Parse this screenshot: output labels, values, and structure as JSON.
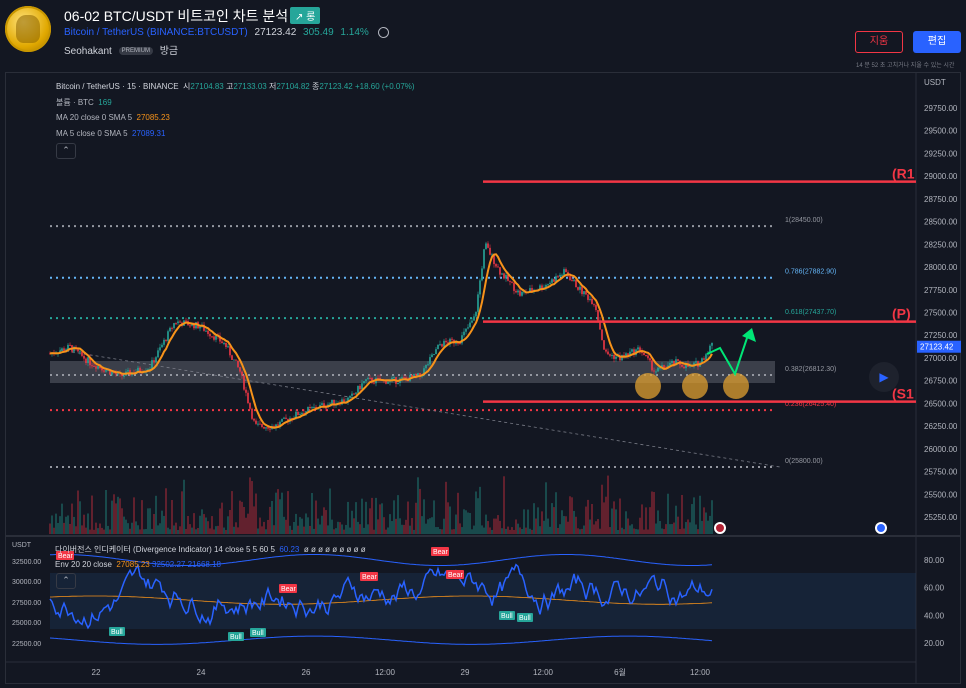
{
  "header": {
    "title": "06-02 BTC/USDT 비트코인 차트 분석",
    "badge": "↗ 롱",
    "symbol": "Bitcoin / TetherUS",
    "exchange": "(BINANCE:BTCUSDT)",
    "price": "27123.42",
    "change": "305.49",
    "change_pct": "1.14%",
    "author": "Seohakant",
    "premium": "PREMIUM",
    "time_ago": "방금",
    "unfollow_label": "지움",
    "edit_label": "편집",
    "edit_note": "14 분 52 초 고치거나 지울 수 있는 시간"
  },
  "legend": {
    "symbol_line": "Bitcoin / TetherUS · 15 · BINANCE",
    "o_label": "시",
    "o_val": "27104.83",
    "h_label": "고",
    "h_val": "27133.03",
    "l_label": "저",
    "l_val": "27104.82",
    "c_label": "종",
    "c_val": "27123.42",
    "chg": "+18.60 (+0.07%)",
    "vol_label": "볼륨 · BTC",
    "vol_val": "169",
    "ma20_label": "MA 20 close 0 SMA 5",
    "ma20_val": "27085.23",
    "ma5_label": "MA 5 close 0 SMA 5",
    "ma5_val": "27089.31",
    "collapse": "⌃"
  },
  "price_axis": {
    "currency": "USDT",
    "ticks": [
      "29750.00",
      "29500.00",
      "29250.00",
      "29000.00",
      "28750.00",
      "28500.00",
      "28250.00",
      "28000.00",
      "27750.00",
      "27500.00",
      "27250.00",
      "27000.00",
      "26750.00",
      "26500.00",
      "26250.00",
      "26000.00",
      "25750.00",
      "25500.00",
      "25250.00"
    ],
    "current": "27123.42"
  },
  "fib": [
    {
      "label": "1(28450.00)",
      "price": 28450,
      "color": "#9598a1"
    },
    {
      "label": "0.786(27882.90)",
      "price": 27882.9,
      "color": "#64b5f6"
    },
    {
      "label": "0.618(27437.70)",
      "price": 27437.7,
      "color": "#26a69a"
    },
    {
      "label": "0.382(26812.30)",
      "price": 26812.3,
      "color": "#9598a1"
    },
    {
      "label": "0.236(26425.40)",
      "price": 26425.4,
      "color": "#f23645"
    },
    {
      "label": "0(25800.00)",
      "price": 25800,
      "color": "#9598a1"
    }
  ],
  "levels": [
    {
      "label": "(R1",
      "price": 28940
    },
    {
      "label": "(P)",
      "price": 27400
    },
    {
      "label": "(S1",
      "price": 26520
    }
  ],
  "time_axis": {
    "ticks": [
      "22",
      "24",
      "26",
      "12:00",
      "29",
      "12:00",
      "6월",
      "12:00"
    ]
  },
  "oscillator": {
    "title": "다이버전스 인디케이터 (Divergence Indicator) 14 close 5 5 60 5",
    "value": "60.23",
    "markers_text": "ø ø ø ø ø ø ø ø ø",
    "env_label": "Env 20 20 close",
    "env_vals": [
      "27085.23",
      "32502.27",
      "21668.18"
    ],
    "left_axis_label": "USDT",
    "left_ticks": [
      "32500.00",
      "30000.00",
      "27500.00",
      "25000.00",
      "22500.00"
    ],
    "right_ticks": [
      "80.00",
      "60.00",
      "40.00",
      "20.00"
    ],
    "bear": "Bear",
    "bull": "Bull"
  },
  "colors": {
    "up": "#26a69a",
    "down": "#f23645",
    "ma": "#f7931a",
    "accent": "#2962ff"
  }
}
